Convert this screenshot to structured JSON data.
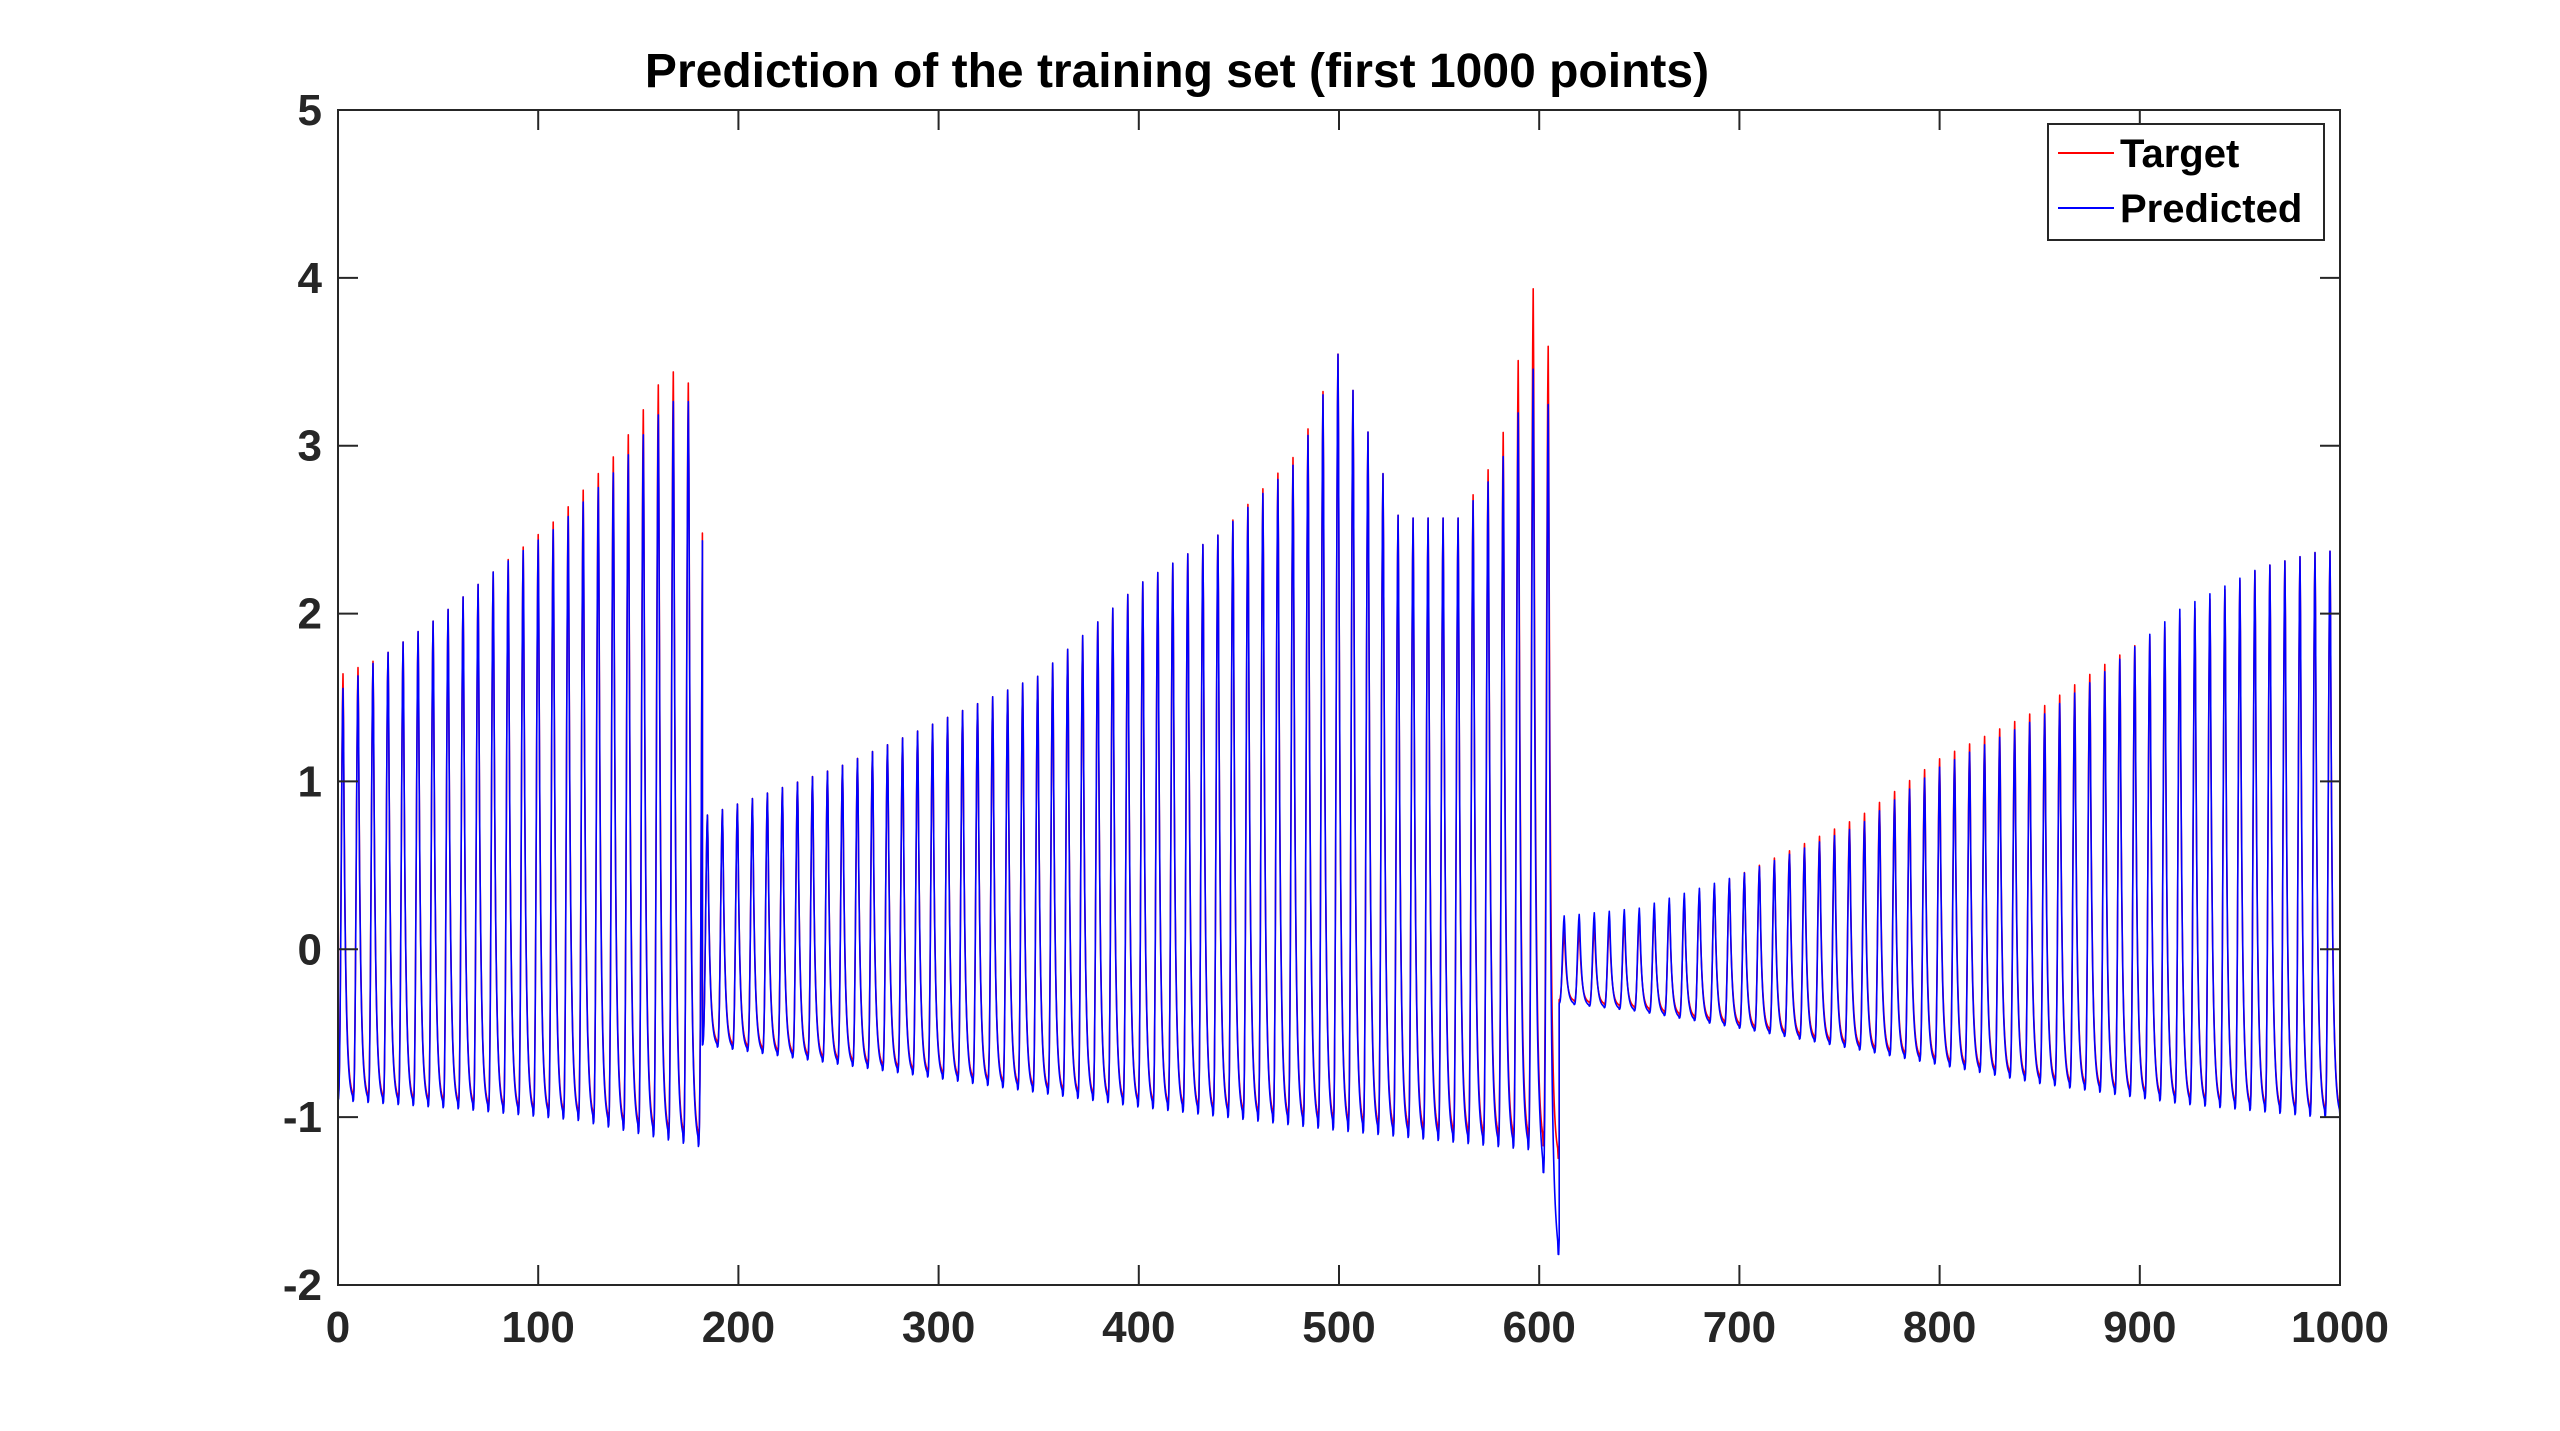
{
  "chart_data": {
    "type": "line",
    "title": "Prediction of the training set (first 1000 points)",
    "xlabel": "",
    "ylabel": "",
    "xlim": [
      0,
      1000
    ],
    "ylim": [
      -2,
      5
    ],
    "grid": false,
    "x_ticks": [
      0,
      100,
      200,
      300,
      400,
      500,
      600,
      700,
      800,
      900,
      1000
    ],
    "x_tick_labels": [
      "0",
      "100",
      "200",
      "300",
      "400",
      "500",
      "600",
      "700",
      "800",
      "900",
      "1000"
    ],
    "y_ticks": [
      -2,
      -1,
      0,
      1,
      2,
      3,
      4,
      5
    ],
    "y_tick_labels": [
      "-2",
      "-1",
      "0",
      "1",
      "2",
      "3",
      "4",
      "5"
    ],
    "legend": {
      "placement": "top-right",
      "entries": [
        "Target",
        "Predicted"
      ]
    },
    "period": 7.5,
    "series": [
      {
        "name": "Target",
        "color": "#ff0000",
        "segments": [
          {
            "start": 0,
            "end": 182,
            "peak_knots": [
              [
                0,
                1.65
              ],
              [
                20,
                1.75
              ],
              [
                50,
                2.0
              ],
              [
                80,
                2.3
              ],
              [
                110,
                2.6
              ],
              [
                140,
                3.0
              ],
              [
                165,
                3.5
              ],
              [
                182,
                3.35
              ]
            ],
            "trough_knots": [
              [
                0,
                -0.88
              ],
              [
                60,
                -0.93
              ],
              [
                120,
                -1.0
              ],
              [
                182,
                -1.15
              ]
            ]
          },
          {
            "start": 182,
            "end": 610,
            "peak_knots": [
              [
                182,
                0.8
              ],
              [
                250,
                1.1
              ],
              [
                350,
                1.65
              ],
              [
                400,
                2.2
              ],
              [
                440,
                2.5
              ],
              [
                480,
                3.0
              ],
              [
                500,
                3.6
              ],
              [
                530,
                2.6
              ],
              [
                560,
                2.6
              ],
              [
                580,
                3.0
              ],
              [
                600,
                4.15
              ],
              [
                610,
                3.0
              ]
            ],
            "trough_knots": [
              [
                182,
                -0.55
              ],
              [
                300,
                -0.75
              ],
              [
                400,
                -0.92
              ],
              [
                500,
                -1.05
              ],
              [
                600,
                -1.15
              ],
              [
                610,
                -1.25
              ]
            ]
          },
          {
            "start": 610,
            "end": 1000,
            "peak_knots": [
              [
                610,
                0.1
              ],
              [
                650,
                0.2
              ],
              [
                700,
                0.45
              ],
              [
                760,
                0.8
              ],
              [
                800,
                1.15
              ],
              [
                850,
                1.45
              ],
              [
                880,
                1.7
              ],
              [
                920,
                2.0
              ],
              [
                960,
                2.3
              ],
              [
                990,
                2.4
              ]
            ],
            "trough_knots": [
              [
                610,
                -0.3
              ],
              [
                650,
                -0.35
              ],
              [
                700,
                -0.45
              ],
              [
                760,
                -0.58
              ],
              [
                850,
                -0.78
              ],
              [
                920,
                -0.9
              ],
              [
                990,
                -0.98
              ]
            ]
          }
        ]
      },
      {
        "name": "Predicted",
        "color": "#0000ff",
        "segments": [
          {
            "start": 0,
            "end": 182,
            "peak_knots": [
              [
                0,
                1.55
              ],
              [
                20,
                1.75
              ],
              [
                50,
                2.0
              ],
              [
                80,
                2.3
              ],
              [
                110,
                2.55
              ],
              [
                140,
                2.9
              ],
              [
                165,
                3.3
              ],
              [
                182,
                3.3
              ]
            ],
            "trough_knots": [
              [
                0,
                -0.9
              ],
              [
                60,
                -0.95
              ],
              [
                120,
                -1.02
              ],
              [
                182,
                -1.18
              ]
            ]
          },
          {
            "start": 182,
            "end": 610,
            "peak_knots": [
              [
                182,
                0.8
              ],
              [
                250,
                1.1
              ],
              [
                350,
                1.65
              ],
              [
                400,
                2.2
              ],
              [
                440,
                2.5
              ],
              [
                480,
                2.95
              ],
              [
                500,
                3.6
              ],
              [
                530,
                2.6
              ],
              [
                560,
                2.6
              ],
              [
                580,
                2.9
              ],
              [
                600,
                3.6
              ],
              [
                610,
                2.9
              ]
            ],
            "trough_knots": [
              [
                182,
                -0.57
              ],
              [
                300,
                -0.77
              ],
              [
                400,
                -0.94
              ],
              [
                500,
                -1.08
              ],
              [
                600,
                -1.2
              ],
              [
                610,
                -1.85
              ]
            ]
          },
          {
            "start": 610,
            "end": 1000,
            "peak_knots": [
              [
                610,
                0.2
              ],
              [
                650,
                0.25
              ],
              [
                700,
                0.45
              ],
              [
                760,
                0.75
              ],
              [
                800,
                1.1
              ],
              [
                850,
                1.4
              ],
              [
                880,
                1.65
              ],
              [
                920,
                2.05
              ],
              [
                960,
                2.3
              ],
              [
                990,
                2.4
              ]
            ],
            "trough_knots": [
              [
                610,
                -0.32
              ],
              [
                650,
                -0.37
              ],
              [
                700,
                -0.47
              ],
              [
                760,
                -0.6
              ],
              [
                850,
                -0.8
              ],
              [
                920,
                -0.92
              ],
              [
                990,
                -1.0
              ]
            ]
          }
        ]
      }
    ]
  }
}
